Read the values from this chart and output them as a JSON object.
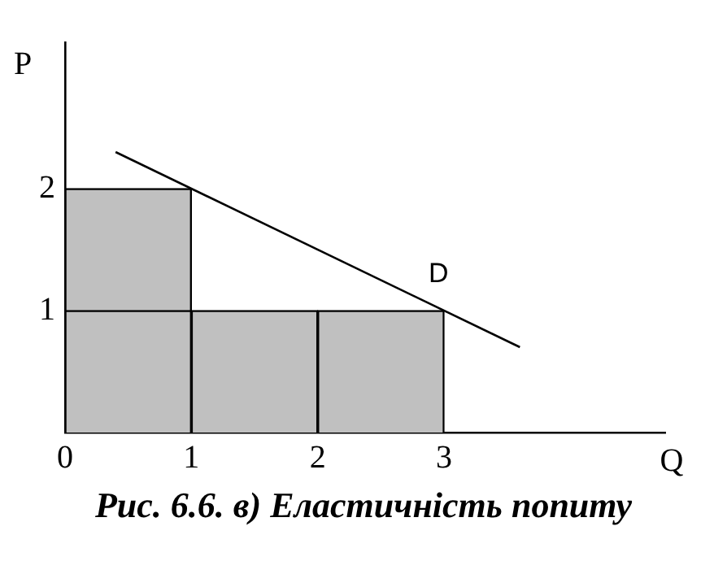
{
  "chart_data": {
    "type": "bar",
    "title": "Рис. 6.6. в) Еластичність попиту",
    "xlabel": "Q",
    "ylabel": "P",
    "stacked": true,
    "x": [
      0.5,
      1.5,
      2.5
    ],
    "series": [
      {
        "color": "#c0c0c0",
        "values": [
          1,
          1,
          1
        ]
      },
      {
        "color": "#c0c0c0",
        "values": [
          1,
          null,
          null
        ]
      },
      {
        "name": "D",
        "type": "line",
        "color": "#000000",
        "x": [
          0.4,
          3.6
        ],
        "values": [
          2.3,
          0.7
        ]
      }
    ],
    "xlim": [
      0,
      4.75
    ],
    "ylim": [
      0,
      3.2
    ],
    "xticks": [
      0,
      1,
      2,
      3
    ],
    "yticks": [
      1,
      2
    ],
    "grid": false,
    "legend": false,
    "marker": "none",
    "line_style": "solid"
  }
}
